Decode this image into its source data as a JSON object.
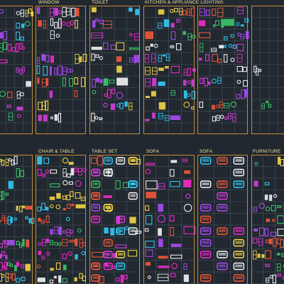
{
  "colors": {
    "background": "#212830",
    "frame": "#c98a35",
    "title": "#f0e6a0",
    "grid": "#5a6470",
    "palette": [
      "#ff2bd6",
      "#e23ee8",
      "#34d3ff",
      "#3bd26b",
      "#ffe14a",
      "#ffffff",
      "#ff5a3a",
      "#b04dff"
    ]
  },
  "top_row": {
    "titles": [
      "WINDOW",
      "TOILET",
      "KITCHEN & APPLIANCE LIGHTING"
    ]
  },
  "bottom_row": {
    "titles": [
      "CHAIR & TABLE",
      "TABLE SET",
      "SOFA",
      "SOFA",
      "FURNITURE"
    ]
  }
}
